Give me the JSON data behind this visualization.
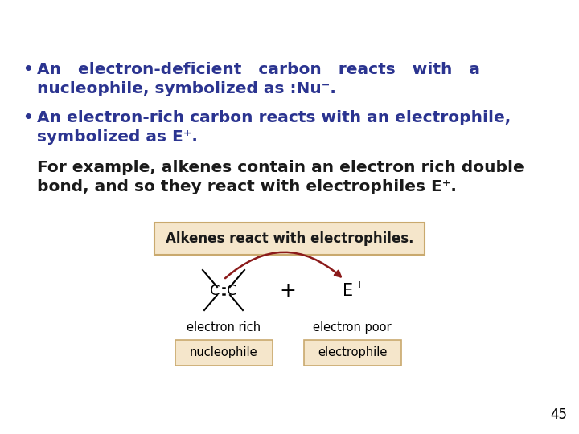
{
  "bg_color": "#ffffff",
  "bullet_color": "#2b3490",
  "text_black": "#1a1a1a",
  "bullet1_line1": "An   electron-deficient   carbon   reacts   with   a",
  "bullet1_line2": "nucleophile, symbolized as :Nu⁻.",
  "bullet2_line1": "An electron-rich carbon reacts with an electrophile,",
  "bullet2_line2": "symbolized as E⁺.",
  "extra_line1": "For example, alkenes contain an electron rich double",
  "extra_line2": "bond, and so they react with electrophiles E⁺.",
  "box_title": "Alkenes react with electrophiles.",
  "box_bg": "#f5e6cb",
  "box_border": "#c9a96e",
  "label_nucleophile": "nucleophile",
  "label_electrophile": "electrophile",
  "label_electron_rich": "electron rich",
  "label_electron_poor": "electron poor",
  "arrow_color": "#8b1a1a",
  "page_number": "45"
}
